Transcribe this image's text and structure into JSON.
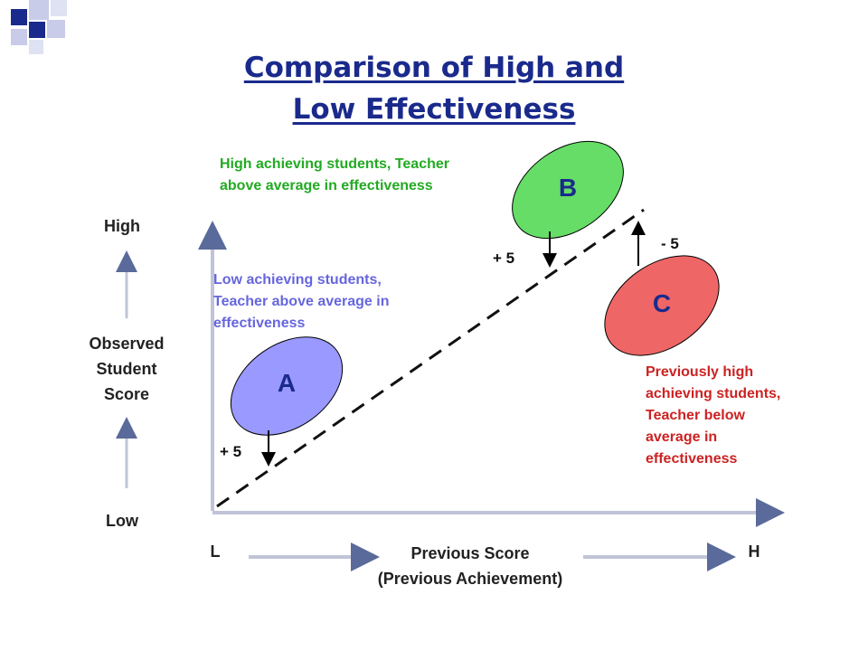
{
  "title": {
    "line1": "Comparison of High and",
    "line2": "Low Effectiveness"
  },
  "y_axis": {
    "high": "High",
    "label_lines": [
      "Observed",
      "Student",
      "Score"
    ],
    "low": "Low"
  },
  "x_axis": {
    "left": "L",
    "label_lines": [
      "Previous Score",
      "(Previous Achievement)"
    ],
    "right": "H"
  },
  "groups": {
    "a": {
      "label": "A",
      "delta": "+ 5",
      "note_lines": [
        "Low achieving students,",
        "Teacher above average in",
        "effectiveness"
      ],
      "color": "#9999ff",
      "note_color": "#6666dd"
    },
    "b": {
      "label": "B",
      "delta": "+ 5",
      "note_lines": [
        "High achieving students, Teacher",
        "above average in effectiveness"
      ],
      "color": "#66dd66",
      "note_color": "#22aa22"
    },
    "c": {
      "label": "C",
      "delta": "- 5",
      "note_lines": [
        "Previously high",
        "achieving students,",
        "Teacher below",
        "average in",
        "effectiveness"
      ],
      "color": "#ee6666",
      "note_color": "#cc2222"
    }
  },
  "colors": {
    "title": "#1a2a8c",
    "deco_dark": "#1a2a8c",
    "deco_light": "#c8cce8"
  }
}
